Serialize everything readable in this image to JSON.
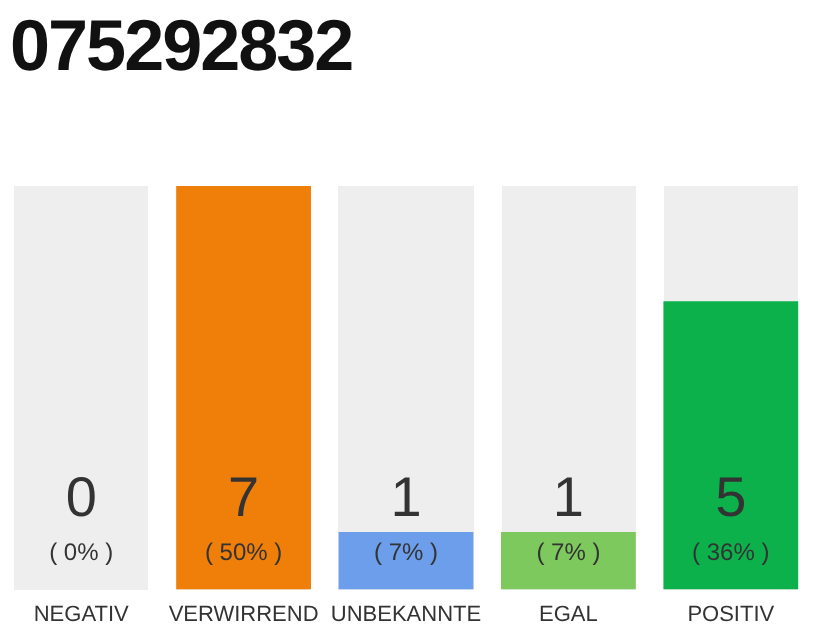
{
  "chart_data": {
    "type": "bar",
    "title": "075292832",
    "categories": [
      "NEGATIV",
      "VERWIRREND",
      "UNBEKANNTE",
      "EGAL",
      "POSITIV"
    ],
    "values": [
      0,
      7,
      1,
      1,
      5
    ],
    "colors": [
      "#f07f0a",
      "#f07f0a",
      "#6d9eeb",
      "#7dc95e",
      "#0db14b"
    ],
    "value_labels": [
      "0",
      "7",
      "1",
      "1",
      "5"
    ],
    "annotations": [
      "( 0% )",
      "( 50% )",
      "( 7% )",
      "( 7% )",
      "( 36% )"
    ],
    "grid": false,
    "legend": false
  }
}
